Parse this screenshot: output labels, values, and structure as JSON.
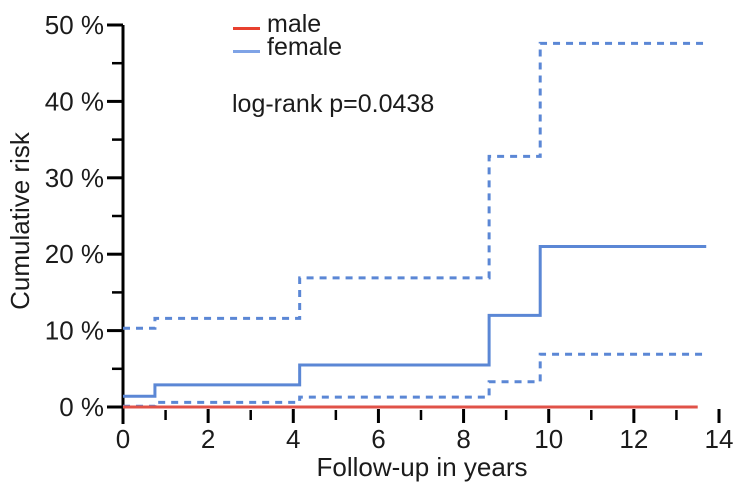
{
  "chart_data": {
    "type": "line",
    "subtype": "step",
    "title": "",
    "xlabel": "Follow-up in years",
    "ylabel": "Cumulative risk",
    "annotation": "log-rank p=0.0438",
    "xlim": [
      0,
      14
    ],
    "ylim": [
      0,
      50
    ],
    "grid": false,
    "legend_position": "top-left-inside",
    "x_ticks_major": [
      0,
      2,
      4,
      6,
      8,
      10,
      12,
      14
    ],
    "x_ticks_minor": [
      1,
      3,
      5,
      7,
      9,
      11,
      13
    ],
    "y_ticks_major": [
      0,
      10,
      20,
      30,
      40,
      50
    ],
    "y_ticks_minor": [
      5,
      15,
      25,
      35,
      45
    ],
    "y_tick_suffix": " %",
    "axis_color": "#000000",
    "legend": [
      {
        "label": "male",
        "color": "#e8402f"
      },
      {
        "label": "female",
        "color": "#7fa3e6"
      }
    ],
    "series": [
      {
        "name": "female-upper-ci",
        "label": "female upper 95% CI",
        "color": "#5b87d5",
        "style": "dashed",
        "x": [
          0,
          0.75,
          0.75,
          4.15,
          4.15,
          8.6,
          8.6,
          9.8,
          9.8,
          13.7
        ],
        "y": [
          10.3,
          10.3,
          11.6,
          11.6,
          16.9,
          16.9,
          32.8,
          32.8,
          47.6,
          47.6
        ]
      },
      {
        "name": "female-lower-ci",
        "label": "female lower 95% CI",
        "color": "#5b87d5",
        "style": "dashed",
        "x": [
          0,
          0.75,
          0.75,
          4.15,
          4.15,
          8.6,
          8.6,
          9.8,
          9.8,
          13.7
        ],
        "y": [
          0.1,
          0.1,
          0.6,
          0.6,
          1.3,
          1.3,
          3.3,
          3.3,
          6.9,
          6.9
        ]
      },
      {
        "name": "male",
        "label": "male",
        "color": "#e05248",
        "style": "solid",
        "x": [
          0,
          13.5
        ],
        "y": [
          0,
          0
        ]
      },
      {
        "name": "female",
        "label": "female",
        "color": "#5b87d5",
        "style": "solid",
        "x": [
          0,
          0.75,
          0.75,
          4.15,
          4.15,
          8.6,
          8.6,
          9.8,
          9.8,
          13.7
        ],
        "y": [
          1.4,
          1.4,
          2.9,
          2.9,
          5.5,
          5.5,
          12,
          12,
          21,
          21
        ]
      }
    ]
  }
}
